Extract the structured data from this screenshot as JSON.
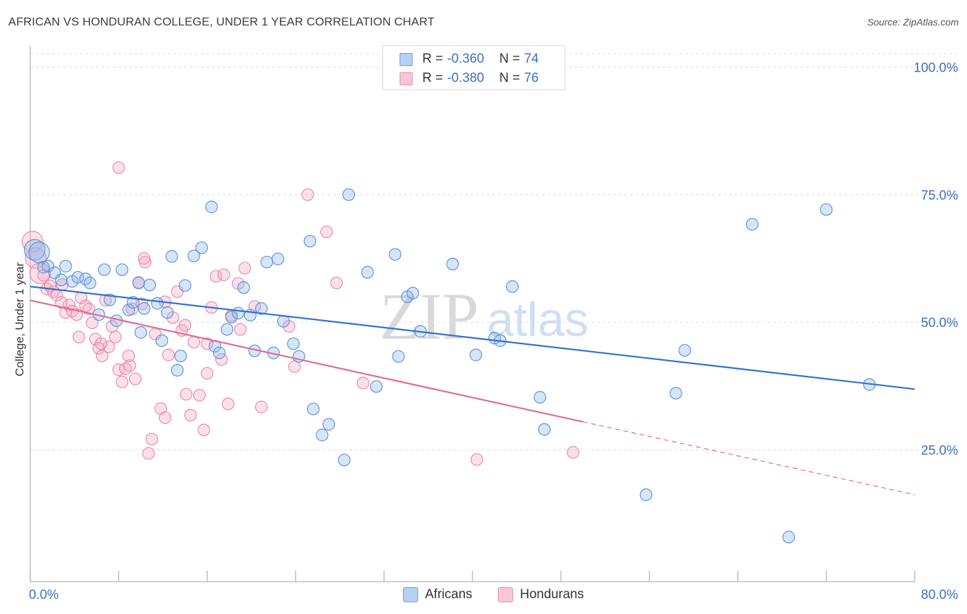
{
  "title": "AFRICAN VS HONDURAN COLLEGE, UNDER 1 YEAR CORRELATION CHART",
  "source": "Source: ZipAtlas.com",
  "watermark": {
    "zip": "ZIP",
    "atlas": "atlas"
  },
  "legend": {
    "rows": [
      {
        "r_label": "R =",
        "r_value": "-0.360",
        "n_label": "N =",
        "n_value": "74",
        "fill": "#b7d0f1",
        "stroke": "#6f9fe0"
      },
      {
        "r_label": "R =",
        "r_value": "-0.380",
        "n_label": "N =",
        "n_value": "76",
        "fill": "#f9c6d6",
        "stroke": "#ea8fae"
      }
    ]
  },
  "bottom_legend": {
    "africans": "Africans",
    "hondurans": "Hondurans"
  },
  "colors": {
    "africans_fill": "rgba(140,180,235,0.35)",
    "africans_stroke": "#5f93d8",
    "africans_line": "#2f6fd1",
    "hondurans_fill": "rgba(245,170,195,0.35)",
    "hondurans_stroke": "#e98aab",
    "hondurans_line": "#e26a95",
    "axis_text": "#3a6fc4",
    "grid": "#dcdcdc"
  },
  "chart_data": {
    "type": "scatter",
    "title": "AFRICAN VS HONDURAN COLLEGE, UNDER 1 YEAR CORRELATION CHART",
    "xlabel": "",
    "ylabel": "College, Under 1 year",
    "xlim": [
      0,
      80
    ],
    "ylim": [
      0,
      105
    ],
    "x_tick_labels": [
      "0.0%",
      "80.0%"
    ],
    "y_ticks": [
      25,
      50,
      75,
      100
    ],
    "y_tick_labels": [
      "25.0%",
      "50.0%",
      "75.0%",
      "100.0%"
    ],
    "grid": true,
    "legend_position": "top-center",
    "series": [
      {
        "name": "Africans",
        "r": -0.36,
        "n": 74,
        "trend": {
          "x": [
            0,
            80
          ],
          "y": [
            57.0,
            36.9
          ],
          "dashed_from": null
        },
        "points": [
          [
            0.4,
            64.2
          ],
          [
            0.8,
            63.7
          ],
          [
            1.2,
            60.8
          ],
          [
            1.6,
            61.0
          ],
          [
            2.2,
            59.7
          ],
          [
            2.8,
            58.3
          ],
          [
            3.2,
            61.0
          ],
          [
            3.8,
            58.0
          ],
          [
            4.3,
            58.8
          ],
          [
            5.0,
            58.5
          ],
          [
            5.4,
            57.7
          ],
          [
            6.2,
            51.5
          ],
          [
            6.7,
            60.3
          ],
          [
            7.2,
            54.4
          ],
          [
            7.8,
            50.3
          ],
          [
            8.3,
            60.3
          ],
          [
            8.9,
            52.4
          ],
          [
            9.3,
            53.9
          ],
          [
            9.8,
            57.7
          ],
          [
            10.3,
            52.7
          ],
          [
            10.8,
            57.3
          ],
          [
            11.5,
            53.7
          ],
          [
            11.9,
            46.4
          ],
          [
            12.4,
            51.9
          ],
          [
            12.8,
            62.9
          ],
          [
            13.3,
            40.6
          ],
          [
            13.6,
            43.4
          ],
          [
            14.0,
            57.2
          ],
          [
            14.8,
            63.0
          ],
          [
            15.5,
            64.6
          ],
          [
            16.4,
            72.6
          ],
          [
            16.7,
            45.3
          ],
          [
            17.1,
            44.0
          ],
          [
            17.8,
            48.6
          ],
          [
            18.2,
            51.0
          ],
          [
            18.8,
            51.8
          ],
          [
            19.3,
            56.8
          ],
          [
            19.9,
            51.4
          ],
          [
            20.3,
            44.4
          ],
          [
            20.9,
            52.7
          ],
          [
            21.4,
            61.8
          ],
          [
            22.0,
            44.0
          ],
          [
            22.4,
            62.4
          ],
          [
            22.9,
            50.2
          ],
          [
            23.8,
            45.8
          ],
          [
            24.3,
            43.3
          ],
          [
            25.3,
            65.9
          ],
          [
            25.6,
            33.0
          ],
          [
            26.4,
            27.9
          ],
          [
            28.4,
            23.0
          ],
          [
            28.8,
            75.0
          ],
          [
            30.5,
            59.8
          ],
          [
            31.3,
            37.4
          ],
          [
            33.0,
            63.3
          ],
          [
            33.3,
            43.3
          ],
          [
            34.1,
            55.0
          ],
          [
            34.6,
            55.7
          ],
          [
            35.3,
            48.2
          ],
          [
            38.2,
            61.4
          ],
          [
            40.3,
            43.6
          ],
          [
            42.0,
            46.9
          ],
          [
            42.5,
            46.4
          ],
          [
            43.6,
            57.0
          ],
          [
            46.1,
            35.3
          ],
          [
            46.5,
            29.0
          ],
          [
            55.7,
            16.2
          ],
          [
            58.4,
            36.1
          ],
          [
            59.2,
            44.5
          ],
          [
            65.3,
            69.2
          ],
          [
            68.6,
            7.9
          ],
          [
            72.0,
            72.1
          ],
          [
            75.9,
            37.8
          ],
          [
            27.0,
            30.0
          ],
          [
            10.0,
            48.0
          ]
        ]
      },
      {
        "name": "Hondurans",
        "r": -0.38,
        "n": 76,
        "trend": {
          "x": [
            0,
            80
          ],
          "y": [
            54.3,
            16.2
          ],
          "dashed_from": 50
        },
        "points": [
          [
            0.2,
            65.8
          ],
          [
            0.5,
            62.6
          ],
          [
            0.9,
            59.6
          ],
          [
            1.2,
            59.2
          ],
          [
            1.5,
            56.5
          ],
          [
            1.8,
            57.1
          ],
          [
            2.1,
            56.0
          ],
          [
            2.4,
            55.3
          ],
          [
            2.9,
            57.4
          ],
          [
            3.2,
            51.9
          ],
          [
            3.5,
            53.4
          ],
          [
            3.8,
            52.2
          ],
          [
            4.2,
            51.5
          ],
          [
            4.6,
            54.8
          ],
          [
            5.0,
            53.2
          ],
          [
            5.3,
            52.6
          ],
          [
            5.6,
            49.9
          ],
          [
            5.9,
            46.7
          ],
          [
            6.2,
            44.9
          ],
          [
            6.5,
            43.4
          ],
          [
            6.8,
            54.3
          ],
          [
            7.1,
            45.2
          ],
          [
            7.4,
            49.2
          ],
          [
            7.7,
            47.1
          ],
          [
            8.0,
            40.7
          ],
          [
            8.3,
            38.3
          ],
          [
            8.6,
            40.9
          ],
          [
            8.9,
            43.4
          ],
          [
            9.2,
            52.6
          ],
          [
            9.5,
            38.9
          ],
          [
            9.8,
            57.8
          ],
          [
            10.1,
            53.6
          ],
          [
            10.4,
            61.8
          ],
          [
            10.7,
            24.3
          ],
          [
            11.0,
            27.1
          ],
          [
            11.3,
            47.7
          ],
          [
            11.8,
            33.1
          ],
          [
            12.2,
            31.3
          ],
          [
            12.5,
            43.6
          ],
          [
            12.9,
            50.9
          ],
          [
            13.3,
            56.0
          ],
          [
            13.7,
            48.4
          ],
          [
            14.1,
            35.9
          ],
          [
            14.5,
            31.8
          ],
          [
            14.8,
            46.1
          ],
          [
            15.3,
            35.7
          ],
          [
            15.7,
            28.9
          ],
          [
            16.0,
            40.0
          ],
          [
            16.4,
            52.9
          ],
          [
            16.8,
            59.0
          ],
          [
            17.3,
            42.7
          ],
          [
            17.9,
            34.0
          ],
          [
            18.2,
            51.3
          ],
          [
            19.0,
            48.6
          ],
          [
            19.4,
            60.6
          ],
          [
            20.9,
            33.4
          ],
          [
            23.4,
            49.2
          ],
          [
            23.9,
            41.3
          ],
          [
            25.1,
            75.0
          ],
          [
            26.8,
            67.7
          ],
          [
            27.7,
            57.7
          ],
          [
            30.1,
            38.1
          ],
          [
            8.0,
            80.3
          ],
          [
            10.3,
            62.5
          ],
          [
            12.2,
            54.0
          ],
          [
            14.0,
            49.4
          ],
          [
            16.0,
            45.8
          ],
          [
            17.5,
            59.3
          ],
          [
            18.8,
            57.6
          ],
          [
            20.3,
            53.1
          ],
          [
            2.8,
            53.9
          ],
          [
            4.4,
            47.1
          ],
          [
            6.4,
            45.8
          ],
          [
            9.0,
            41.5
          ],
          [
            40.4,
            23.1
          ],
          [
            49.1,
            24.5
          ]
        ]
      }
    ]
  }
}
